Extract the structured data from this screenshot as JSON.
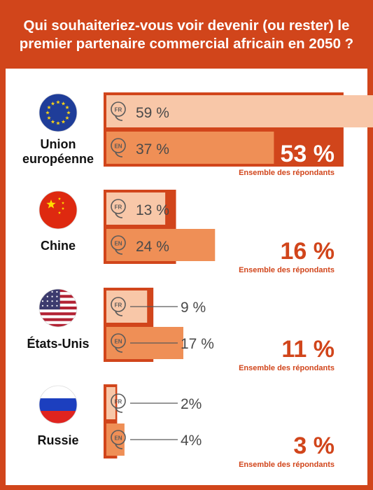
{
  "title": "Qui souhaiteriez-vous voir devenir (ou rester) le premier partenaire commercial africain en 2050 ?",
  "colors": {
    "frame": "#d1451b",
    "overall_bar": "#d1451b",
    "fr_bar": "#f8c7a8",
    "en_bar": "#ef8f56",
    "text_dark": "#4a4a4a",
    "accent_text": "#d1451b"
  },
  "language_badges": {
    "fr": "FR",
    "en": "EN"
  },
  "overall_label": "Ensemble des répondants",
  "chart_data": {
    "type": "bar",
    "orientation": "horizontal",
    "categories": [
      "Union européenne",
      "Chine",
      "États-Unis",
      "Russie"
    ],
    "series": [
      {
        "name": "FR",
        "values": [
          59,
          13,
          9,
          2
        ]
      },
      {
        "name": "EN",
        "values": [
          37,
          24,
          17,
          4
        ]
      },
      {
        "name": "Ensemble des répondants",
        "values": [
          53,
          16,
          11,
          3
        ]
      }
    ],
    "value_labels": {
      "FR": [
        "59 %",
        "13 %",
        "9 %",
        "2%"
      ],
      "EN": [
        "37 %",
        "24 %",
        "17 %",
        "4%"
      ],
      "overall": [
        "53 %",
        "16 %",
        "11 %",
        "3 %"
      ]
    },
    "flags": [
      "eu-flag",
      "china-flag",
      "usa-flag",
      "russia-flag"
    ],
    "country_label_lines": [
      [
        "Union",
        "européenne"
      ],
      [
        "Chine"
      ],
      [
        "États-Unis"
      ],
      [
        "Russie"
      ]
    ],
    "grid": false
  }
}
